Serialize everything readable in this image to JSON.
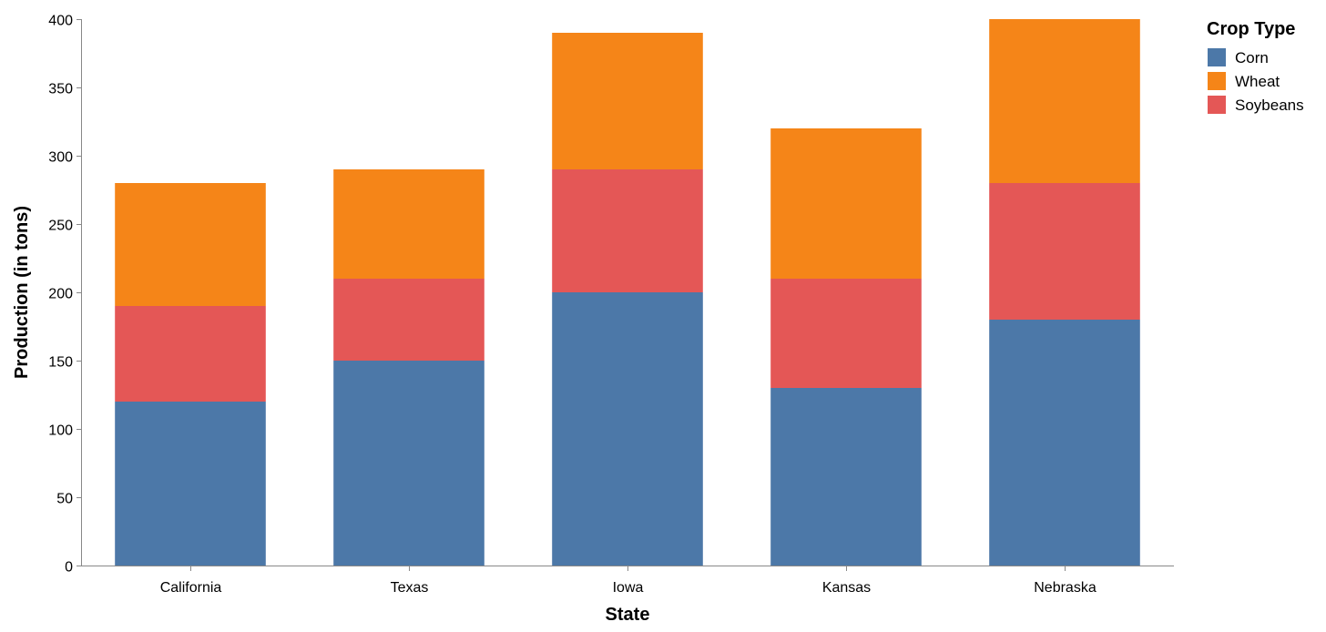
{
  "chart_data": {
    "type": "bar",
    "stacked": true,
    "xlabel": "State",
    "ylabel": "Production (in tons)",
    "ylim": [
      0,
      400
    ],
    "yticks": [
      0,
      50,
      100,
      150,
      200,
      250,
      300,
      350,
      400
    ],
    "categories": [
      "California",
      "Texas",
      "Iowa",
      "Kansas",
      "Nebraska"
    ],
    "series": [
      {
        "name": "Corn",
        "color": "#4c78a8",
        "values": [
          120,
          150,
          200,
          130,
          180
        ]
      },
      {
        "name": "Soybeans",
        "color": "#e45756",
        "values": [
          70,
          60,
          90,
          80,
          100
        ]
      },
      {
        "name": "Wheat",
        "color": "#f58518",
        "values": [
          90,
          80,
          100,
          110,
          120
        ]
      }
    ],
    "legend": {
      "title": "Crop Type",
      "position": "top-right",
      "items": [
        {
          "name": "Corn",
          "color": "#4c78a8"
        },
        {
          "name": "Wheat",
          "color": "#f58518"
        },
        {
          "name": "Soybeans",
          "color": "#e45756"
        }
      ]
    },
    "grid": false
  }
}
